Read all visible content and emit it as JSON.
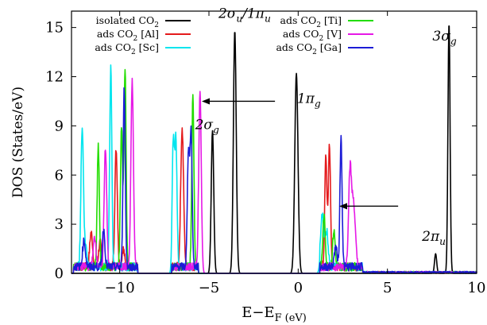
{
  "chart_data": {
    "type": "line",
    "xlabel": "E−E_F (eV)",
    "ylabel": "DOS (States/eV)",
    "xlim": [
      -12.7,
      10
    ],
    "ylim": [
      0,
      16
    ],
    "xticks": [
      -10,
      -5,
      0,
      5,
      10
    ],
    "xtick_labels": [
      "−10",
      "−5",
      "0",
      "5",
      "10"
    ],
    "yticks": [
      0,
      3,
      6,
      9,
      12,
      15
    ],
    "ytick_labels": [
      "0",
      "3",
      "6",
      "9",
      "12",
      "15"
    ],
    "grid": false,
    "legend_position": "top",
    "series": [
      {
        "name": "isolated CO₂",
        "legend_label": "isolated CO",
        "legend_sub": "2",
        "legend_suffix": "",
        "color": "#000000",
        "peaks": [
          [
            -4.8,
            8.7,
            0.07
          ],
          [
            -3.55,
            14.8,
            0.08
          ],
          [
            -0.1,
            12.2,
            0.09
          ],
          [
            7.7,
            1.2,
            0.06
          ],
          [
            8.45,
            15.3,
            0.06
          ]
        ]
      },
      {
        "name": "ads CO₂ [Al]",
        "legend_label": "ads CO",
        "legend_sub": "2",
        "legend_suffix": " [Al]",
        "color": "#e41a1c",
        "peaks": [
          [
            -11.6,
            2.1,
            0.08
          ],
          [
            -11.1,
            1.5,
            0.08
          ],
          [
            -10.2,
            7.2,
            0.07
          ],
          [
            -9.8,
            1.1,
            0.07
          ],
          [
            -6.5,
            8.4,
            0.08
          ],
          [
            1.55,
            6.8,
            0.06
          ],
          [
            1.75,
            7.5,
            0.06
          ]
        ]
      },
      {
        "name": "ads CO₂ [Sc]",
        "legend_label": "ads CO",
        "legend_sub": "2",
        "legend_suffix": " [Sc]",
        "color": "#00e5ee",
        "peaks": [
          [
            -12.1,
            8.5,
            0.07
          ],
          [
            -11.9,
            1.2,
            0.08
          ],
          [
            -10.5,
            12.1,
            0.06
          ],
          [
            -7.0,
            7.6,
            0.06
          ],
          [
            -6.85,
            7.7,
            0.06
          ],
          [
            1.35,
            3.2,
            0.09
          ],
          [
            1.6,
            2.2,
            0.08
          ]
        ]
      },
      {
        "name": "ads CO₂ [Ti]",
        "legend_label": "ads CO",
        "legend_sub": "2",
        "legend_suffix": " [Ti]",
        "color": "#22dd00",
        "peaks": [
          [
            -11.2,
            7.5,
            0.06
          ],
          [
            -9.9,
            8.5,
            0.06
          ],
          [
            -9.7,
            12.2,
            0.06
          ],
          [
            -5.9,
            10.4,
            0.06
          ],
          [
            1.45,
            3.0,
            0.07
          ],
          [
            2.0,
            2.2,
            0.07
          ]
        ]
      },
      {
        "name": "ads CO₂ [V]",
        "legend_label": "ads CO",
        "legend_sub": "2",
        "legend_suffix": " [V]",
        "color": "#e619e6",
        "peaks": [
          [
            -11.4,
            1.8,
            0.08
          ],
          [
            -10.8,
            7.3,
            0.07
          ],
          [
            -9.3,
            11.3,
            0.07
          ],
          [
            -5.5,
            11.1,
            0.07
          ],
          [
            2.9,
            5.7,
            0.08
          ],
          [
            3.1,
            3.9,
            0.1
          ]
        ]
      },
      {
        "name": "ads CO₂ [Ga]",
        "legend_label": "ads CO",
        "legend_sub": "2",
        "legend_suffix": " [Ga]",
        "color": "#1c1cd6",
        "peaks": [
          [
            -12.0,
            1.6,
            0.08
          ],
          [
            -10.9,
            2.3,
            0.07
          ],
          [
            -9.75,
            10.9,
            0.06
          ],
          [
            -6.15,
            7.0,
            0.06
          ],
          [
            -6.0,
            8.2,
            0.06
          ],
          [
            2.4,
            7.9,
            0.06
          ],
          [
            2.1,
            1.2,
            0.08
          ]
        ]
      }
    ],
    "annotations": [
      {
        "text": "2σ_u/1π_u",
        "x": -3.0,
        "y": 15.6
      },
      {
        "text": "1π_g",
        "x": 0.6,
        "y": 10.4
      },
      {
        "text": "2σ_g",
        "x": -5.1,
        "y": 8.8
      },
      {
        "text": "3σ_g",
        "x": 8.2,
        "y": 14.2
      },
      {
        "text": "2π_u",
        "x": 7.6,
        "y": 2.0
      }
    ],
    "arrows": [
      {
        "from": [
          -1.3,
          10.5
        ],
        "to": [
          -5.4,
          10.5
        ]
      },
      {
        "from": [
          5.6,
          4.1
        ],
        "to": [
          2.3,
          4.1
        ]
      }
    ]
  }
}
